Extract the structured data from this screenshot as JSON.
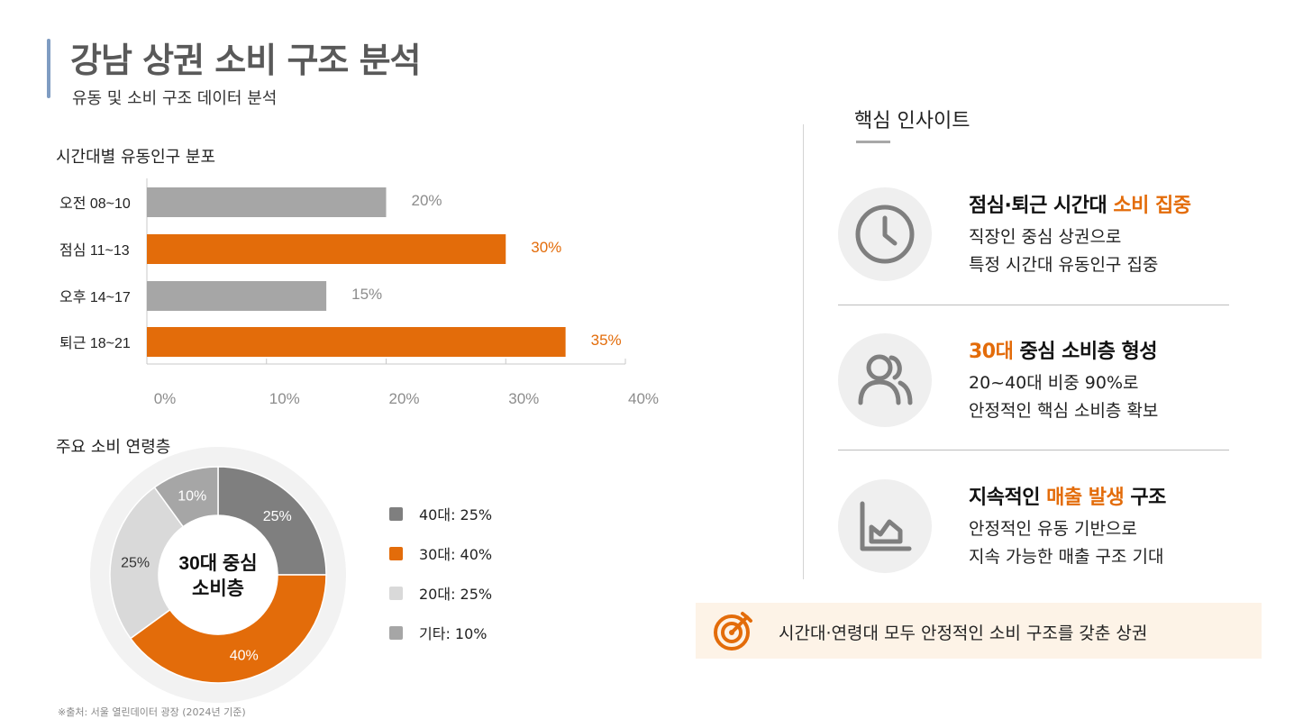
{
  "header": {
    "title": "강남 상권 소비 구조 분석",
    "subtitle": "유동 및 소비 구조 데이터 분석"
  },
  "chart_data": [
    {
      "type": "bar",
      "orientation": "horizontal",
      "title": "시간대별 유동인구 분포",
      "categories": [
        "오전 08~10",
        "점심 11~13",
        "오후 14~17",
        "퇴근 18~21"
      ],
      "values": [
        20,
        30,
        15,
        35
      ],
      "value_labels": [
        "20%",
        "30%",
        "15%",
        "35%"
      ],
      "colors": [
        "#a6a6a6",
        "#e36c0a",
        "#a6a6a6",
        "#e36c0a"
      ],
      "xlim": [
        0,
        40
      ],
      "x_ticks": [
        "0%",
        "10%",
        "20%",
        "30%",
        "40%"
      ],
      "grid": false
    },
    {
      "type": "pie",
      "donut": true,
      "title": "주요 소비 연령층",
      "center_label": [
        "30대 중심",
        "소비층"
      ],
      "slices": [
        {
          "label": "40대",
          "value": 25,
          "value_label": "25%",
          "legend": "40대: 25%",
          "color": "#7f7f7f"
        },
        {
          "label": "30대",
          "value": 40,
          "value_label": "40%",
          "legend": "30대: 40%",
          "color": "#e36c0a"
        },
        {
          "label": "20대",
          "value": 25,
          "value_label": "25%",
          "legend": "20대: 25%",
          "color": "#d9d9d9"
        },
        {
          "label": "기타",
          "value": 10,
          "value_label": "10%",
          "legend": "기타:  10%",
          "color": "#a6a6a6"
        }
      ],
      "legend_position": "right"
    }
  ],
  "source": "※출처: 서울 열린데이터 광장 (2024년 기준)",
  "insights": {
    "heading": "핵심 인사이트",
    "items": [
      {
        "icon": "clock-icon",
        "title_pre": "점심·퇴근 시간대 ",
        "title_hl": "소비 집중",
        "title_post": "",
        "line1": "직장인 중심 상권으로",
        "line2": "특정 시간대 유동인구 집중"
      },
      {
        "icon": "users-icon",
        "title_pre": "",
        "title_hl": "30대",
        "title_post": " 중심 소비층 형성",
        "line1": "20~40대 비중 90%로",
        "line2": "안정적인 핵심 소비층 확보"
      },
      {
        "icon": "area-chart-icon",
        "title_pre": "지속적인 ",
        "title_hl": "매출 발생",
        "title_post": " 구조",
        "line1": "안정적인 유동 기반으로",
        "line2": "지속 가능한 매출 구조 기대"
      }
    ]
  },
  "banner": {
    "icon": "target-icon",
    "text": "시간대·연령대 모두 안정적인 소비 구조를 갖춘 상권"
  },
  "colors": {
    "accent": "#e36c0a",
    "gray": "#a6a6a6",
    "dark_gray": "#7f7f7f",
    "light_gray": "#d9d9d9",
    "banner_bg": "#fdf3e7"
  }
}
